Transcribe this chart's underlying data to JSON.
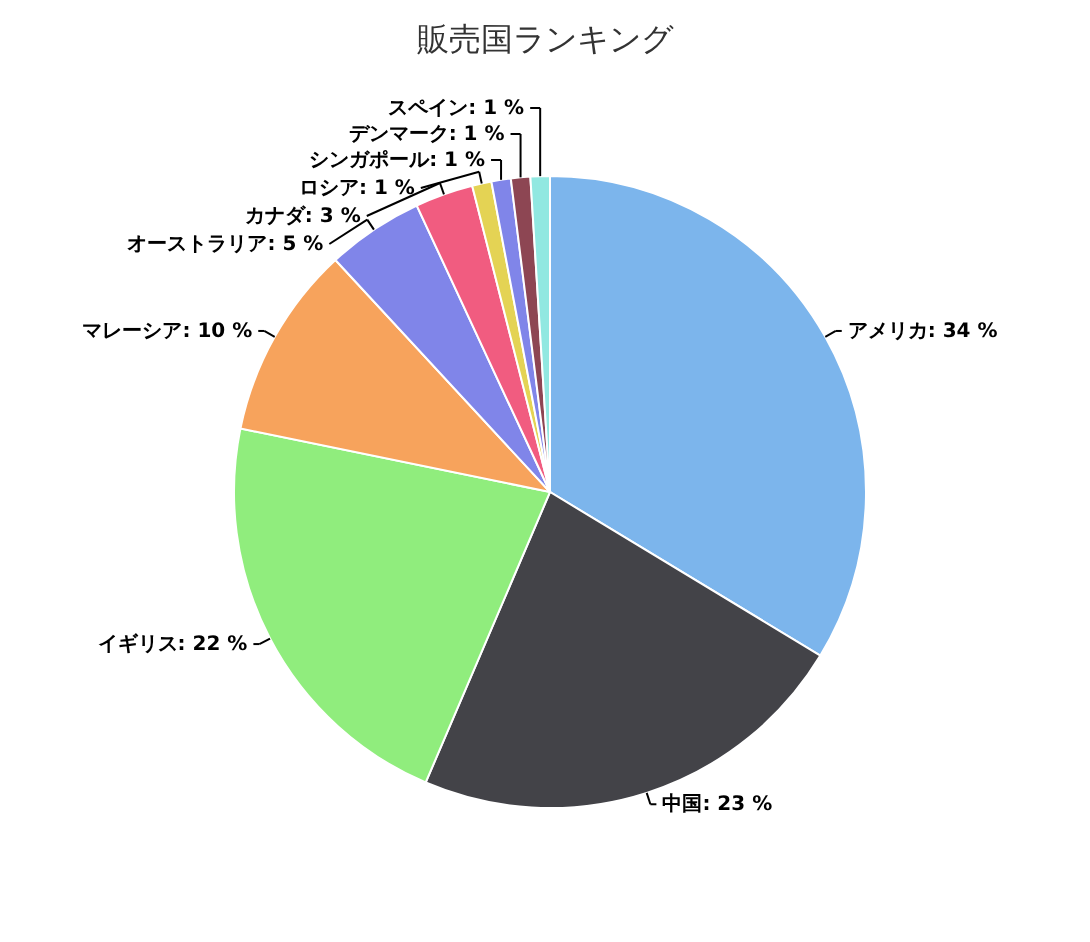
{
  "chart_data": {
    "type": "pie",
    "title": "販売国ランキング",
    "categories": [
      "アメリカ",
      "中国",
      "イギリス",
      "マレーシア",
      "オーストラリア",
      "カナダ",
      "ロシア",
      "シンガポール",
      "デンマーク",
      "スペイン"
    ],
    "values": [
      34,
      23,
      22,
      10,
      5,
      3,
      1,
      1,
      1,
      1
    ],
    "value_labels": [
      "34 %",
      "23 %",
      "22 %",
      "10 %",
      "5 %",
      "3 %",
      "1 %",
      "1 %",
      "1 %",
      "1 %"
    ],
    "colors": [
      "#7cb5ec",
      "#434348",
      "#90ed7d",
      "#f7a35c",
      "#8085e9",
      "#f15c80",
      "#e4d354",
      "#8085e9",
      "#8d4653",
      "#91e8e1"
    ],
    "legend": false
  }
}
